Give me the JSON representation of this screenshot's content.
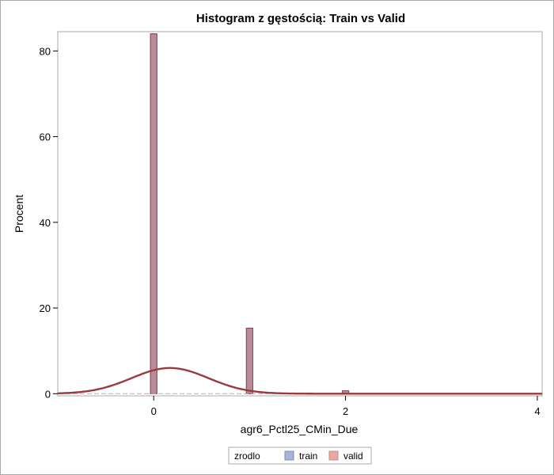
{
  "chart_data": {
    "type": "bar",
    "title": "Histogram z gęstością: Train vs Valid",
    "xlabel": "agr6_Pctl25_CMin_Due",
    "ylabel": "Procent",
    "xlim": [
      -1.0,
      4.05
    ],
    "ylim": [
      -0.5,
      84.5
    ],
    "x_ticks": [
      0,
      2,
      4
    ],
    "y_ticks": [
      0,
      20,
      40,
      60,
      80
    ],
    "legend": {
      "title": "zrodlo",
      "position": "bottom-center",
      "items": [
        {
          "label": "train",
          "color": "#aab3d3"
        },
        {
          "label": "valid",
          "color": "#e6a8a8"
        }
      ]
    },
    "bin_width": 0.067,
    "series": [
      {
        "name": "train",
        "color": "#7f8bbb",
        "x": [
          0,
          1,
          2
        ],
        "values": [
          84.0,
          15.3,
          0.7
        ]
      },
      {
        "name": "valid",
        "color": "#b86f75",
        "x": [
          0,
          1,
          2
        ],
        "values": [
          84.0,
          15.3,
          0.7
        ]
      }
    ],
    "density": {
      "mean": 0.17,
      "sd": 0.4,
      "peak": 6.0,
      "color": "#9a3b3b"
    }
  }
}
